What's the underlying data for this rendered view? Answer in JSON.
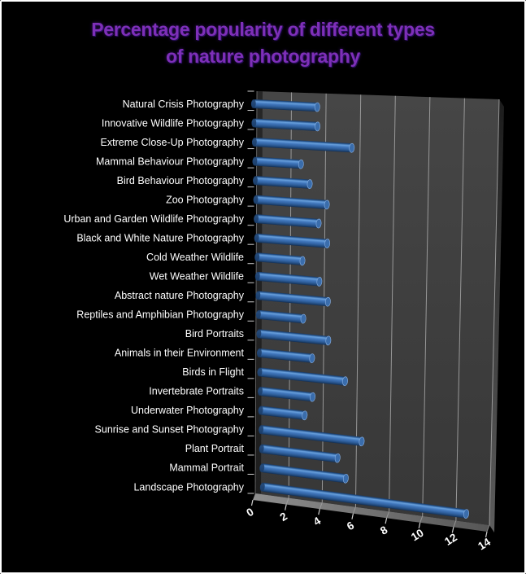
{
  "window": {
    "background": "#000000",
    "border_color": "#ffffff"
  },
  "chart_data": {
    "type": "bar",
    "orientation": "horizontal",
    "style": "3d-cylinder",
    "title": "Percentage popularity of different types of nature photography",
    "title_lines": [
      "Percentage popularity of different types",
      "of nature photography"
    ],
    "categories": [
      "Natural Crisis Photography",
      "Innovative Wildlife Photography",
      "Extreme Close-Up Photography",
      "Mammal Behaviour Photography",
      "Bird Behaviour Photography",
      "Zoo Photography",
      "Urban and Garden Wildlife Photography",
      "Black and White Nature Photography",
      "Cold Weather Wildlife",
      "Wet Weather Wildlife",
      "Abstract nature Photography",
      "Reptiles and Amphibian Photography",
      "Bird Portraits",
      "Animals in their Environment",
      "Birds in Flight",
      "Invertebrate Portraits",
      "Underwater Photography",
      "Sunrise and Sunset Photography",
      "Plant Portrait",
      "Mammal Portrait",
      "Landscape Photography"
    ],
    "values": [
      4,
      4,
      6,
      3,
      3.5,
      4.5,
      4,
      4.5,
      3,
      4,
      4.5,
      3,
      4.5,
      3.5,
      5.5,
      3.5,
      3,
      6.5,
      5,
      5.5,
      13
    ],
    "x_ticks": [
      0,
      2,
      4,
      6,
      8,
      10,
      12,
      14
    ],
    "xlim": [
      0,
      14
    ],
    "xlabel": "",
    "ylabel": "",
    "grid": true,
    "legend": "none",
    "colors": {
      "background": "#000000",
      "title": "#7e2fb8",
      "category_label": "#ffffff",
      "tick_label": "#ffffff",
      "wall_top": "#464646",
      "wall_bottom": "#373737",
      "wall_side_dark": "#1c1c1c",
      "wall_side_light": "#5d5d5d",
      "floor_light": "#8e8e8e",
      "floor_dark": "#565656",
      "gridline": "#a8a8a8",
      "axis_tick": "#cfcfcf",
      "bar_dark_edge": "#17365e",
      "bar_highlight": "#68a0dd",
      "bar_mid": "#4076bb",
      "bar_shadow": "#132c4e",
      "bar_cap": "#3a6dac",
      "bar_cap_rim": "#8ab1e2"
    }
  }
}
